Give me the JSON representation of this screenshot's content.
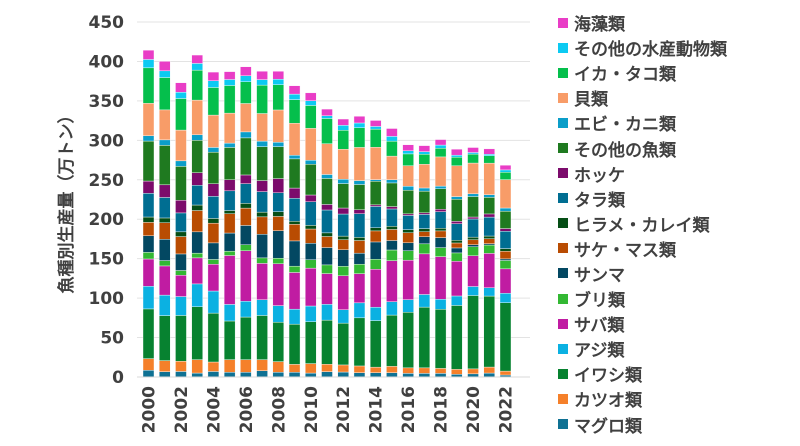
{
  "chart_data": {
    "type": "bar",
    "stacked": true,
    "title": "",
    "xlabel": "",
    "ylabel": "魚種別生産量（万トン）",
    "ylim": [
      0,
      450
    ],
    "yticks": [
      "0",
      "50",
      "100",
      "150",
      "200",
      "250",
      "300",
      "350",
      "400",
      "450"
    ],
    "grid": true,
    "legend_position": "right",
    "categories": [
      "2000",
      "2001",
      "2002",
      "2003",
      "2004",
      "2005",
      "2006",
      "2007",
      "2008",
      "2009",
      "2010",
      "2011",
      "2012",
      "2013",
      "2014",
      "2015",
      "2016",
      "2017",
      "2018",
      "2019",
      "2020",
      "2021",
      "2022"
    ],
    "xtick_labels": [
      "2000",
      "2002",
      "2004",
      "2006",
      "2008",
      "2010",
      "2012",
      "2014",
      "2016",
      "2018",
      "2020",
      "2022"
    ],
    "series": [
      {
        "name": "マグロ類",
        "color": "#0f7193",
        "values": [
          8.5,
          6.8,
          7,
          5,
          7,
          6,
          6,
          8,
          6,
          6,
          5,
          6.8,
          6.3,
          5.5,
          5.5,
          5.5,
          4.6,
          4.6,
          4.6,
          3.4,
          4,
          5,
          2.5
        ]
      },
      {
        "name": "カツオ類",
        "color": "#f5802a",
        "values": [
          14.8,
          14,
          13,
          17,
          12,
          16,
          16,
          14,
          13.5,
          10,
          12,
          9.3,
          9,
          8.5,
          7,
          8,
          7,
          7,
          6.3,
          6.3,
          6.3,
          7.6,
          5
        ]
      },
      {
        "name": "イワシ類",
        "color": "#078230",
        "values": [
          63,
          57,
          58,
          67,
          62,
          49,
          54,
          56,
          50,
          51,
          53,
          56,
          53,
          61,
          59,
          65,
          70.5,
          77,
          75,
          81,
          93,
          90,
          86.6
        ]
      },
      {
        "name": "アジ類",
        "color": "#0bb1e2",
        "values": [
          28.7,
          26,
          24,
          29,
          28,
          21,
          20,
          20,
          21,
          19,
          20,
          20,
          17,
          19,
          17,
          17,
          16,
          16,
          12.7,
          12,
          11.4,
          10.6,
          12
        ]
      },
      {
        "name": "サバ類",
        "color": "#c01ca2",
        "values": [
          34.6,
          37,
          27,
          33,
          34,
          62,
          64,
          46,
          53,
          46.5,
          48,
          39,
          43,
          37,
          48,
          52,
          50,
          51.5,
          54,
          44,
          39,
          43.5,
          31
        ]
      },
      {
        "name": "ブリ類",
        "color": "#33b833",
        "values": [
          8.4,
          6.8,
          6,
          6,
          6,
          5.5,
          7.6,
          7,
          7,
          8,
          10.6,
          11,
          12,
          12,
          12.7,
          13.5,
          12,
          12.7,
          11.4,
          10.6,
          11.4,
          10.6,
          10.6
        ]
      },
      {
        "name": "サンマ",
        "color": "#034862",
        "values": [
          21,
          27,
          21,
          27,
          21,
          23,
          24.5,
          30,
          35,
          32,
          21,
          22,
          21,
          14,
          22,
          12,
          10,
          9,
          12.7,
          6.3,
          2.5,
          1.7,
          2
        ]
      },
      {
        "name": "サケ・マス類",
        "color": "#b94c02",
        "values": [
          17,
          21,
          22,
          27,
          25,
          24.5,
          22,
          22,
          18,
          21,
          18,
          14,
          12.7,
          16,
          14,
          14,
          12.7,
          6.3,
          8.5,
          6.3,
          6.3,
          6.3,
          9.7
        ]
      },
      {
        "name": "ヒラメ・カレイ類",
        "color": "#064e16",
        "values": [
          6.8,
          6,
          6,
          7,
          6,
          4,
          6,
          6,
          6,
          4,
          4.6,
          4.6,
          4.6,
          4,
          4,
          4,
          4,
          4,
          3.4,
          3.4,
          3.4,
          3.4,
          3.4
        ]
      },
      {
        "name": "タラ類",
        "color": "#006e92",
        "values": [
          30,
          26,
          24,
          25,
          28,
          25,
          25,
          26,
          24,
          29,
          30,
          29,
          28,
          30,
          27,
          22,
          18,
          18,
          21,
          21,
          23,
          24,
          22
        ]
      },
      {
        "name": "ホッケ",
        "color": "#7c0b6c",
        "values": [
          15.6,
          16,
          16,
          16,
          16,
          14,
          11,
          14,
          18,
          13,
          8.5,
          7,
          7.6,
          5,
          2,
          3,
          2,
          2,
          3,
          3,
          2.5,
          4,
          3.4
        ]
      },
      {
        "name": "その他の魚類",
        "color": "#1f7a20",
        "values": [
          50.7,
          50,
          43,
          41,
          40,
          41,
          47,
          43,
          40.5,
          37,
          39,
          33,
          31,
          32,
          30,
          30,
          30,
          27.5,
          26,
          28,
          26,
          21,
          22
        ]
      },
      {
        "name": "エビ・カニ類",
        "color": "#0b9ec9",
        "values": [
          6.8,
          7,
          7,
          7,
          6,
          5.5,
          7.6,
          7,
          5.5,
          4.6,
          5,
          5,
          5.5,
          5,
          2,
          4,
          5,
          4,
          3.4,
          3.4,
          3.4,
          3.4,
          4
        ]
      },
      {
        "name": "貝類",
        "color": "#f89c68",
        "values": [
          41,
          38,
          39,
          44,
          41,
          38,
          36,
          35,
          41,
          40.5,
          40.5,
          39,
          38,
          42,
          41,
          30,
          26,
          30,
          37,
          39,
          39,
          40,
          36
        ]
      },
      {
        "name": "イカ・タコ類",
        "color": "#05bf4c",
        "values": [
          45,
          41,
          40,
          38,
          35,
          35,
          27.5,
          36,
          32,
          30,
          29,
          32,
          24,
          25,
          23,
          19,
          15,
          12.7,
          11,
          11,
          11.4,
          9.3,
          9.3
        ]
      },
      {
        "name": "その他の水産動物類",
        "color": "#0ccaf2",
        "values": [
          10.6,
          8.5,
          8,
          8.5,
          8.5,
          7.6,
          7.6,
          7,
          7,
          7,
          6,
          3.4,
          6.3,
          6,
          3.4,
          6,
          4,
          3.4,
          4,
          2.5,
          2,
          2,
          3
        ]
      },
      {
        "name": "海藻類",
        "color": "#e93dc6",
        "values": [
          11.8,
          12,
          12,
          10.6,
          11,
          10,
          11.4,
          10.6,
          10,
          10.6,
          10,
          8.5,
          8,
          8.5,
          7.6,
          10,
          7.6,
          7.6,
          7,
          7.6,
          6.3,
          6.8,
          6
        ]
      }
    ]
  }
}
